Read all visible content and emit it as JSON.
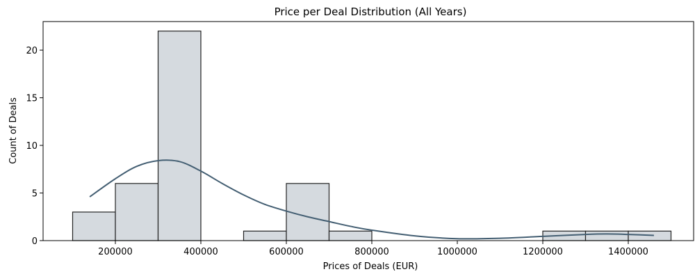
{
  "chart_data": {
    "type": "bar",
    "title": "Price per Deal Distribution (All Years)",
    "xlabel": "Prices of Deals (EUR)",
    "ylabel": "Count of Deals",
    "xlim": [
      0,
      1500000
    ],
    "ylim": [
      0,
      23
    ],
    "x_ticks": [
      200000,
      400000,
      600000,
      800000,
      1000000,
      1200000,
      1400000
    ],
    "x_tick_labels": [
      "200000",
      "400000",
      "600000",
      "800000",
      "1000000",
      "1200000",
      "1400000"
    ],
    "y_ticks": [
      0,
      5,
      10,
      15,
      20
    ],
    "y_tick_labels": [
      "0",
      "5",
      "10",
      "15",
      "20"
    ],
    "bins": [
      {
        "start": 100000,
        "end": 200000,
        "count": 3
      },
      {
        "start": 200000,
        "end": 300000,
        "count": 6
      },
      {
        "start": 300000,
        "end": 400000,
        "count": 22
      },
      {
        "start": 500000,
        "end": 600000,
        "count": 1
      },
      {
        "start": 600000,
        "end": 700000,
        "count": 6
      },
      {
        "start": 700000,
        "end": 800000,
        "count": 1
      },
      {
        "start": 1200000,
        "end": 1300000,
        "count": 1
      },
      {
        "start": 1300000,
        "end": 1400000,
        "count": 1
      },
      {
        "start": 1400000,
        "end": 1500000,
        "count": 1
      }
    ],
    "kde": {
      "x": [
        140000,
        200000,
        250000,
        300000,
        350000,
        400000,
        450000,
        500000,
        550000,
        600000,
        650000,
        700000,
        750000,
        800000,
        900000,
        1000000,
        1100000,
        1200000,
        1300000,
        1350000,
        1400000,
        1460000
      ],
      "y": [
        4.6,
        6.5,
        7.8,
        8.4,
        8.3,
        7.3,
        6.0,
        4.8,
        3.8,
        3.1,
        2.5,
        2.0,
        1.5,
        1.1,
        0.5,
        0.2,
        0.25,
        0.45,
        0.65,
        0.7,
        0.65,
        0.55
      ]
    },
    "colors": {
      "bar_fill": "#d5dadf",
      "bar_stroke": "#222222",
      "kde_line": "#435e72"
    },
    "grid": false,
    "legend": false
  }
}
